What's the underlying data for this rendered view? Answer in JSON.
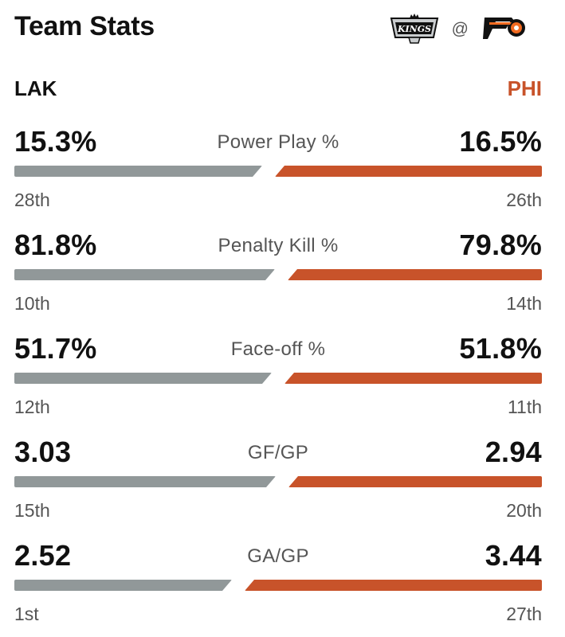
{
  "header": {
    "title": "Team Stats",
    "separator": "@",
    "away_logo": "la-kings-logo",
    "home_logo": "philadelphia-flyers-logo"
  },
  "teams": {
    "away": {
      "abbr": "LAK",
      "color": "#919899"
    },
    "home": {
      "abbr": "PHI",
      "color": "#c8532a"
    }
  },
  "stats": [
    {
      "label": "Power Play %",
      "away": "15.3%",
      "home": "16.5%",
      "away_rank": "28th",
      "home_rank": "26th",
      "away_num": 15.3,
      "home_num": 16.5
    },
    {
      "label": "Penalty Kill %",
      "away": "81.8%",
      "home": "79.8%",
      "away_rank": "10th",
      "home_rank": "14th",
      "away_num": 81.8,
      "home_num": 79.8
    },
    {
      "label": "Face-off %",
      "away": "51.7%",
      "home": "51.8%",
      "away_rank": "12th",
      "home_rank": "11th",
      "away_num": 51.7,
      "home_num": 51.8
    },
    {
      "label": "GF/GP",
      "away": "3.03",
      "home": "2.94",
      "away_rank": "15th",
      "home_rank": "20th",
      "away_num": 3.03,
      "home_num": 2.94
    },
    {
      "label": "GA/GP",
      "away": "2.52",
      "home": "3.44",
      "away_rank": "1st",
      "home_rank": "27th",
      "away_num": 2.52,
      "home_num": 3.44
    }
  ]
}
